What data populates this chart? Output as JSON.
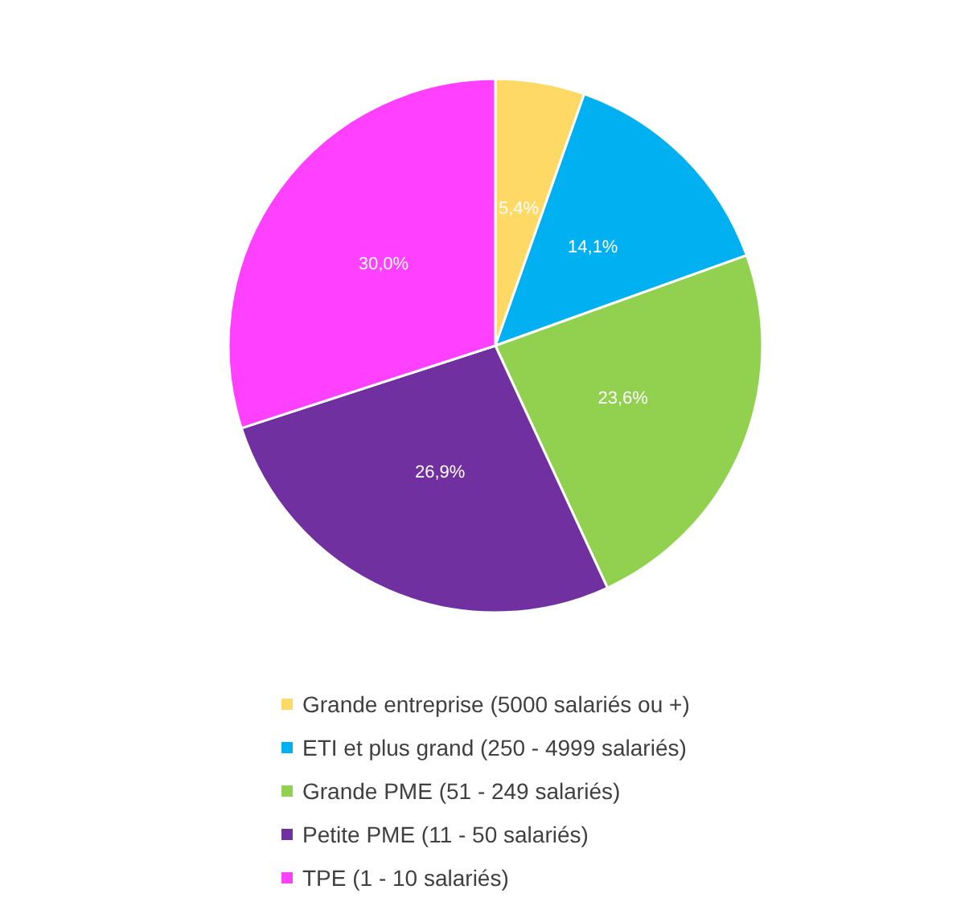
{
  "chart_data": {
    "type": "pie",
    "categories": [
      "Grande entreprise (5000 salariés ou +)",
      "ETI et plus grand (250 - 4999 salariés)",
      "Grande PME (51 - 249 salariés)",
      "Petite PME (11 - 50 salariés)",
      "TPE (1 - 10 salariés)"
    ],
    "values": [
      5.4,
      14.1,
      23.6,
      26.9,
      30.0
    ],
    "value_labels": [
      "5,4%",
      "14,1%",
      "23,6%",
      "26,9%",
      "30,0%"
    ],
    "colors": [
      "#ffd966",
      "#00b0f0",
      "#92d050",
      "#7030a0",
      "#ff40ff"
    ],
    "legend": "bottom"
  }
}
